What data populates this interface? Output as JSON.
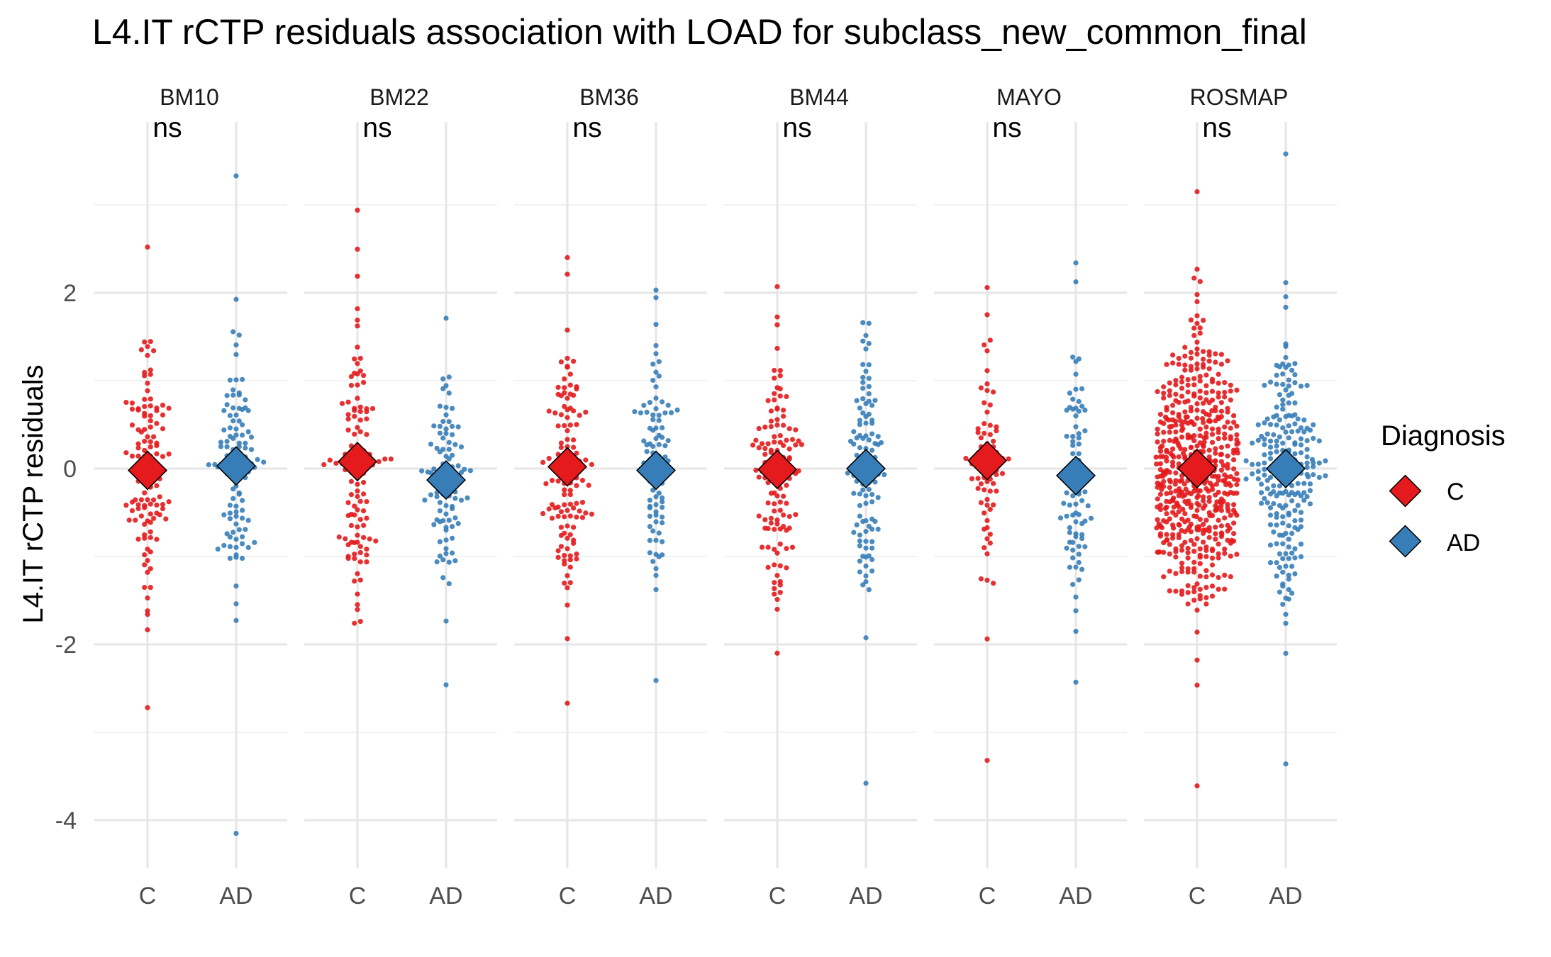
{
  "chart_data": {
    "type": "scatter",
    "subtype": "beeswarm-with-mean",
    "title": "L4.IT rCTP residuals association with LOAD for subclass_new_common_final",
    "ylabel": "L4.IT rCTP residuals",
    "xlabel": "",
    "ylim": [
      -4.5,
      4.2
    ],
    "yticks": [
      -4,
      -2,
      0,
      2
    ],
    "categories": [
      "C",
      "AD"
    ],
    "colors": {
      "C": "#E41A1C",
      "AD": "#377EB8"
    },
    "legend": {
      "title": "Diagnosis",
      "position": "right",
      "entries": [
        "C",
        "AD"
      ]
    },
    "grid": true,
    "panels": [
      {
        "name": "BM10",
        "annotation": "ns",
        "C": {
          "n": 120,
          "mean": -0.02,
          "min": -2.72,
          "max": 2.52
        },
        "AD": {
          "n": 110,
          "mean": 0.03,
          "min": -4.15,
          "max": 3.33
        }
      },
      {
        "name": "BM22",
        "annotation": "ns",
        "C": {
          "n": 115,
          "mean": 0.08,
          "min": -1.76,
          "max": 2.94
        },
        "AD": {
          "n": 95,
          "mean": -0.13,
          "min": -2.46,
          "max": 1.71
        }
      },
      {
        "name": "BM36",
        "annotation": "ns",
        "C": {
          "n": 125,
          "mean": 0.02,
          "min": -2.67,
          "max": 2.4
        },
        "AD": {
          "n": 90,
          "mean": -0.02,
          "min": -2.41,
          "max": 2.03
        }
      },
      {
        "name": "BM44",
        "annotation": "ns",
        "C": {
          "n": 125,
          "mean": -0.01,
          "min": -2.1,
          "max": 2.07
        },
        "AD": {
          "n": 110,
          "mean": 0.0,
          "min": -3.58,
          "max": 1.66
        }
      },
      {
        "name": "MAYO",
        "annotation": "ns",
        "C": {
          "n": 75,
          "mean": 0.09,
          "min": -3.32,
          "max": 2.06
        },
        "AD": {
          "n": 85,
          "mean": -0.08,
          "min": -2.43,
          "max": 2.34
        }
      },
      {
        "name": "ROSMAP",
        "annotation": "ns",
        "C": {
          "n": 560,
          "mean": 0.0,
          "min": -3.61,
          "max": 3.15
        },
        "AD": {
          "n": 230,
          "mean": 0.0,
          "min": -3.36,
          "max": 3.58
        }
      }
    ]
  }
}
